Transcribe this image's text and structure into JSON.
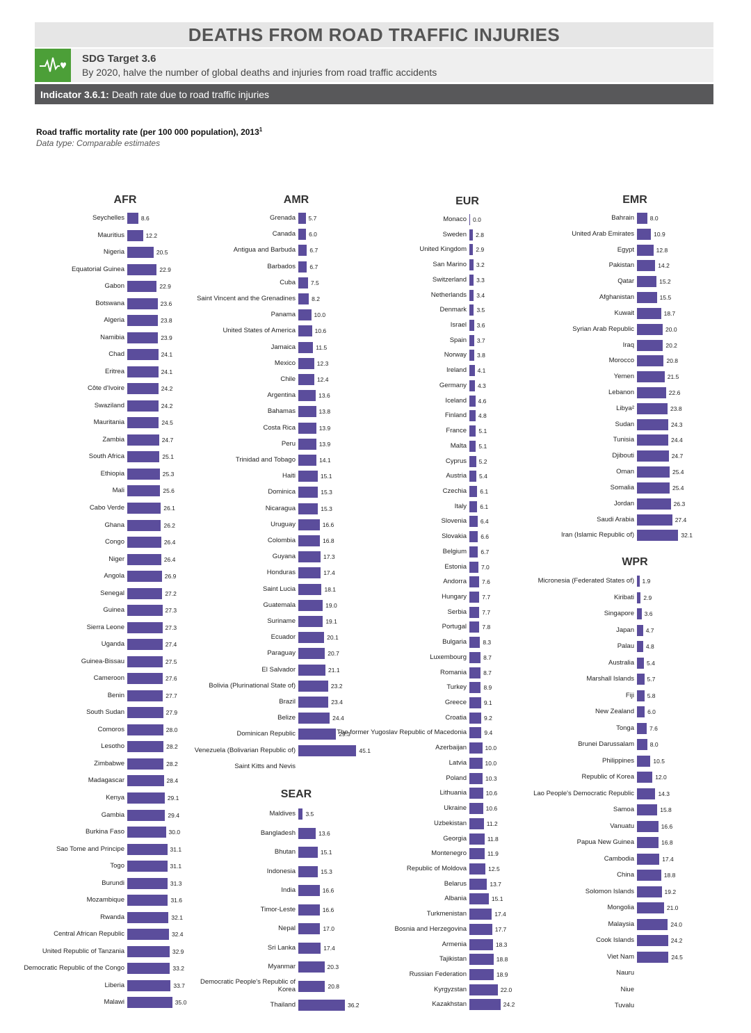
{
  "header": {
    "title": "DEATHS FROM ROAD TRAFFIC INJURIES",
    "sdg_target": "SDG Target 3.6",
    "sdg_text": "By 2020, halve the number of global deaths and injuries from road traffic accidents",
    "indicator_code": "Indicator 3.6.1:",
    "indicator_text": "Death rate due to road traffic injuries",
    "colors": {
      "sdg_green": "#4c9f38",
      "indicator_bar": "#58585a",
      "title_bar": "#e6e6e6",
      "bar": "#5b4d9c"
    },
    "icon": "heartbeat-icon"
  },
  "chart_title": "Road traffic mortality rate (per 100 000 population), 2013",
  "chart_title_sup": "1",
  "chart_sub": "Data type: Comparable estimates",
  "chart_data": {
    "type": "bar",
    "orientation": "horizontal",
    "regions": [
      {
        "name": "AFR",
        "countries": [
          {
            "name": "Seychelles",
            "value": 8.6
          },
          {
            "name": "Mauritius",
            "value": 12.2
          },
          {
            "name": "Nigeria",
            "value": 20.5
          },
          {
            "name": "Equatorial Guinea",
            "value": 22.9
          },
          {
            "name": "Gabon",
            "value": 22.9
          },
          {
            "name": "Botswana",
            "value": 23.6
          },
          {
            "name": "Algeria",
            "value": 23.8
          },
          {
            "name": "Namibia",
            "value": 23.9
          },
          {
            "name": "Chad",
            "value": 24.1
          },
          {
            "name": "Eritrea",
            "value": 24.1
          },
          {
            "name": "Côte d'Ivoire",
            "value": 24.2
          },
          {
            "name": "Swaziland",
            "value": 24.2
          },
          {
            "name": "Mauritania",
            "value": 24.5
          },
          {
            "name": "Zambia",
            "value": 24.7
          },
          {
            "name": "South Africa",
            "value": 25.1
          },
          {
            "name": "Ethiopia",
            "value": 25.3
          },
          {
            "name": "Mali",
            "value": 25.6
          },
          {
            "name": "Cabo Verde",
            "value": 26.1
          },
          {
            "name": "Ghana",
            "value": 26.2
          },
          {
            "name": "Congo",
            "value": 26.4
          },
          {
            "name": "Niger",
            "value": 26.4
          },
          {
            "name": "Angola",
            "value": 26.9
          },
          {
            "name": "Senegal",
            "value": 27.2
          },
          {
            "name": "Guinea",
            "value": 27.3
          },
          {
            "name": "Sierra Leone",
            "value": 27.3
          },
          {
            "name": "Uganda",
            "value": 27.4
          },
          {
            "name": "Guinea-Bissau",
            "value": 27.5
          },
          {
            "name": "Cameroon",
            "value": 27.6
          },
          {
            "name": "Benin",
            "value": 27.7
          },
          {
            "name": "South Sudan",
            "value": 27.9
          },
          {
            "name": "Comoros",
            "value": 28.0
          },
          {
            "name": "Lesotho",
            "value": 28.2
          },
          {
            "name": "Zimbabwe",
            "value": 28.2
          },
          {
            "name": "Madagascar",
            "value": 28.4
          },
          {
            "name": "Kenya",
            "value": 29.1
          },
          {
            "name": "Gambia",
            "value": 29.4
          },
          {
            "name": "Burkina Faso",
            "value": 30.0
          },
          {
            "name": "Sao Tome and Principe",
            "value": 31.1
          },
          {
            "name": "Togo",
            "value": 31.1
          },
          {
            "name": "Burundi",
            "value": 31.3
          },
          {
            "name": "Mozambique",
            "value": 31.6
          },
          {
            "name": "Rwanda",
            "value": 32.1
          },
          {
            "name": "Central African Republic",
            "value": 32.4
          },
          {
            "name": "United Republic of Tanzania",
            "value": 32.9
          },
          {
            "name": "Democratic Republic of the Congo",
            "value": 33.2
          },
          {
            "name": "Liberia",
            "value": 33.7
          },
          {
            "name": "Malawi",
            "value": 35.0
          }
        ]
      },
      {
        "name": "AMR",
        "countries": [
          {
            "name": "Grenada",
            "value": 5.7
          },
          {
            "name": "Canada",
            "value": 6.0
          },
          {
            "name": "Antigua and Barbuda",
            "value": 6.7
          },
          {
            "name": "Barbados",
            "value": 6.7
          },
          {
            "name": "Cuba",
            "value": 7.5
          },
          {
            "name": "Saint Vincent and the Grenadines",
            "value": 8.2
          },
          {
            "name": "Panama",
            "value": 10.0
          },
          {
            "name": "United States of America",
            "value": 10.6
          },
          {
            "name": "Jamaica",
            "value": 11.5
          },
          {
            "name": "Mexico",
            "value": 12.3
          },
          {
            "name": "Chile",
            "value": 12.4
          },
          {
            "name": "Argentina",
            "value": 13.6
          },
          {
            "name": "Bahamas",
            "value": 13.8
          },
          {
            "name": "Costa Rica",
            "value": 13.9
          },
          {
            "name": "Peru",
            "value": 13.9
          },
          {
            "name": "Trinidad and Tobago",
            "value": 14.1
          },
          {
            "name": "Haiti",
            "value": 15.1
          },
          {
            "name": "Dominica",
            "value": 15.3
          },
          {
            "name": "Nicaragua",
            "value": 15.3
          },
          {
            "name": "Uruguay",
            "value": 16.6
          },
          {
            "name": "Colombia",
            "value": 16.8
          },
          {
            "name": "Guyana",
            "value": 17.3
          },
          {
            "name": "Honduras",
            "value": 17.4
          },
          {
            "name": "Saint Lucia",
            "value": 18.1
          },
          {
            "name": "Guatemala",
            "value": 19.0
          },
          {
            "name": "Suriname",
            "value": 19.1
          },
          {
            "name": "Ecuador",
            "value": 20.1
          },
          {
            "name": "Paraguay",
            "value": 20.7
          },
          {
            "name": "El Salvador",
            "value": 21.1
          },
          {
            "name": "Bolivia (Plurinational State of)",
            "value": 23.2
          },
          {
            "name": "Brazil",
            "value": 23.4
          },
          {
            "name": "Belize",
            "value": 24.4
          },
          {
            "name": "Dominican Republic",
            "value": 29.3
          },
          {
            "name": "Venezuela (Bolivarian Republic of)",
            "value": 45.1
          },
          {
            "name": "Saint Kitts and Nevis",
            "value": null
          }
        ]
      },
      {
        "name": "SEAR",
        "countries": [
          {
            "name": "Maldives",
            "value": 3.5
          },
          {
            "name": "Bangladesh",
            "value": 13.6
          },
          {
            "name": "Bhutan",
            "value": 15.1
          },
          {
            "name": "Indonesia",
            "value": 15.3
          },
          {
            "name": "India",
            "value": 16.6
          },
          {
            "name": "Timor-Leste",
            "value": 16.6
          },
          {
            "name": "Nepal",
            "value": 17.0
          },
          {
            "name": "Sri Lanka",
            "value": 17.4
          },
          {
            "name": "Myanmar",
            "value": 20.3
          },
          {
            "name": "Democratic People's Republic of Korea",
            "value": 20.8
          },
          {
            "name": "Thailand",
            "value": 36.2
          }
        ]
      },
      {
        "name": "EUR",
        "countries": [
          {
            "name": "Monaco",
            "value": 0.0
          },
          {
            "name": "Sweden",
            "value": 2.8
          },
          {
            "name": "United Kingdom",
            "value": 2.9
          },
          {
            "name": "San Marino",
            "value": 3.2
          },
          {
            "name": "Switzerland",
            "value": 3.3
          },
          {
            "name": "Netherlands",
            "value": 3.4
          },
          {
            "name": "Denmark",
            "value": 3.5
          },
          {
            "name": "Israel",
            "value": 3.6
          },
          {
            "name": "Spain",
            "value": 3.7
          },
          {
            "name": "Norway",
            "value": 3.8
          },
          {
            "name": "Ireland",
            "value": 4.1
          },
          {
            "name": "Germany",
            "value": 4.3
          },
          {
            "name": "Iceland",
            "value": 4.6
          },
          {
            "name": "Finland",
            "value": 4.8
          },
          {
            "name": "France",
            "value": 5.1
          },
          {
            "name": "Malta",
            "value": 5.1
          },
          {
            "name": "Cyprus",
            "value": 5.2
          },
          {
            "name": "Austria",
            "value": 5.4
          },
          {
            "name": "Czechia",
            "value": 6.1
          },
          {
            "name": "Italy",
            "value": 6.1
          },
          {
            "name": "Slovenia",
            "value": 6.4
          },
          {
            "name": "Slovakia",
            "value": 6.6
          },
          {
            "name": "Belgium",
            "value": 6.7
          },
          {
            "name": "Estonia",
            "value": 7.0
          },
          {
            "name": "Andorra",
            "value": 7.6
          },
          {
            "name": "Hungary",
            "value": 7.7
          },
          {
            "name": "Serbia",
            "value": 7.7
          },
          {
            "name": "Portugal",
            "value": 7.8
          },
          {
            "name": "Bulgaria",
            "value": 8.3
          },
          {
            "name": "Luxembourg",
            "value": 8.7
          },
          {
            "name": "Romania",
            "value": 8.7
          },
          {
            "name": "Turkey",
            "value": 8.9
          },
          {
            "name": "Greece",
            "value": 9.1
          },
          {
            "name": "Croatia",
            "value": 9.2
          },
          {
            "name": "The former Yugoslav Republic of Macedonia",
            "value": 9.4
          },
          {
            "name": "Azerbaijan",
            "value": 10.0
          },
          {
            "name": "Latvia",
            "value": 10.0
          },
          {
            "name": "Poland",
            "value": 10.3
          },
          {
            "name": "Lithuania",
            "value": 10.6
          },
          {
            "name": "Ukraine",
            "value": 10.6
          },
          {
            "name": "Uzbekistan",
            "value": 11.2
          },
          {
            "name": "Georgia",
            "value": 11.8
          },
          {
            "name": "Montenegro",
            "value": 11.9
          },
          {
            "name": "Republic of Moldova",
            "value": 12.5
          },
          {
            "name": "Belarus",
            "value": 13.7
          },
          {
            "name": "Albania",
            "value": 15.1
          },
          {
            "name": "Turkmenistan",
            "value": 17.4
          },
          {
            "name": "Bosnia and Herzegovina",
            "value": 17.7
          },
          {
            "name": "Armenia",
            "value": 18.3
          },
          {
            "name": "Tajikistan",
            "value": 18.8
          },
          {
            "name": "Russian Federation",
            "value": 18.9
          },
          {
            "name": "Kyrgyzstan",
            "value": 22.0
          },
          {
            "name": "Kazakhstan",
            "value": 24.2
          }
        ]
      },
      {
        "name": "EMR",
        "countries": [
          {
            "name": "Bahrain",
            "value": 8.0
          },
          {
            "name": "United Arab Emirates",
            "value": 10.9
          },
          {
            "name": "Egypt",
            "value": 12.8
          },
          {
            "name": "Pakistan",
            "value": 14.2
          },
          {
            "name": "Qatar",
            "value": 15.2
          },
          {
            "name": "Afghanistan",
            "value": 15.5
          },
          {
            "name": "Kuwait",
            "value": 18.7
          },
          {
            "name": "Syrian Arab Republic",
            "value": 20.0
          },
          {
            "name": "Iraq",
            "value": 20.2
          },
          {
            "name": "Morocco",
            "value": 20.8
          },
          {
            "name": "Yemen",
            "value": 21.5
          },
          {
            "name": "Lebanon",
            "value": 22.6
          },
          {
            "name": "Libya²",
            "value": 23.8
          },
          {
            "name": "Sudan",
            "value": 24.3
          },
          {
            "name": "Tunisia",
            "value": 24.4
          },
          {
            "name": "Djibouti",
            "value": 24.7
          },
          {
            "name": "Oman",
            "value": 25.4
          },
          {
            "name": "Somalia",
            "value": 25.4
          },
          {
            "name": "Jordan",
            "value": 26.3
          },
          {
            "name": "Saudi Arabia",
            "value": 27.4
          },
          {
            "name": "Iran (Islamic Republic of)",
            "value": 32.1
          }
        ]
      },
      {
        "name": "WPR",
        "countries": [
          {
            "name": "Micronesia (Federated States of)",
            "value": 1.9
          },
          {
            "name": "Kiribati",
            "value": 2.9
          },
          {
            "name": "Singapore",
            "value": 3.6
          },
          {
            "name": "Japan",
            "value": 4.7
          },
          {
            "name": "Palau",
            "value": 4.8
          },
          {
            "name": "Australia",
            "value": 5.4
          },
          {
            "name": "Marshall Islands",
            "value": 5.7
          },
          {
            "name": "Fiji",
            "value": 5.8
          },
          {
            "name": "New Zealand",
            "value": 6.0
          },
          {
            "name": "Tonga",
            "value": 7.6
          },
          {
            "name": "Brunei Darussalam",
            "value": 8.0
          },
          {
            "name": "Philippines",
            "value": 10.5
          },
          {
            "name": "Republic of Korea",
            "value": 12.0
          },
          {
            "name": "Lao People's Democratic Republic",
            "value": 14.3
          },
          {
            "name": "Samoa",
            "value": 15.8
          },
          {
            "name": "Vanuatu",
            "value": 16.6
          },
          {
            "name": "Papua New Guinea",
            "value": 16.8
          },
          {
            "name": "Cambodia",
            "value": 17.4
          },
          {
            "name": "China",
            "value": 18.8
          },
          {
            "name": "Solomon Islands",
            "value": 19.2
          },
          {
            "name": "Mongolia",
            "value": 21.0
          },
          {
            "name": "Malaysia",
            "value": 24.0
          },
          {
            "name": "Cook Islands",
            "value": 24.2
          },
          {
            "name": "Viet Nam",
            "value": 24.5
          },
          {
            "name": "Nauru",
            "value": null
          },
          {
            "name": "Niue",
            "value": null
          },
          {
            "name": "Tuvalu",
            "value": null
          }
        ]
      }
    ]
  }
}
